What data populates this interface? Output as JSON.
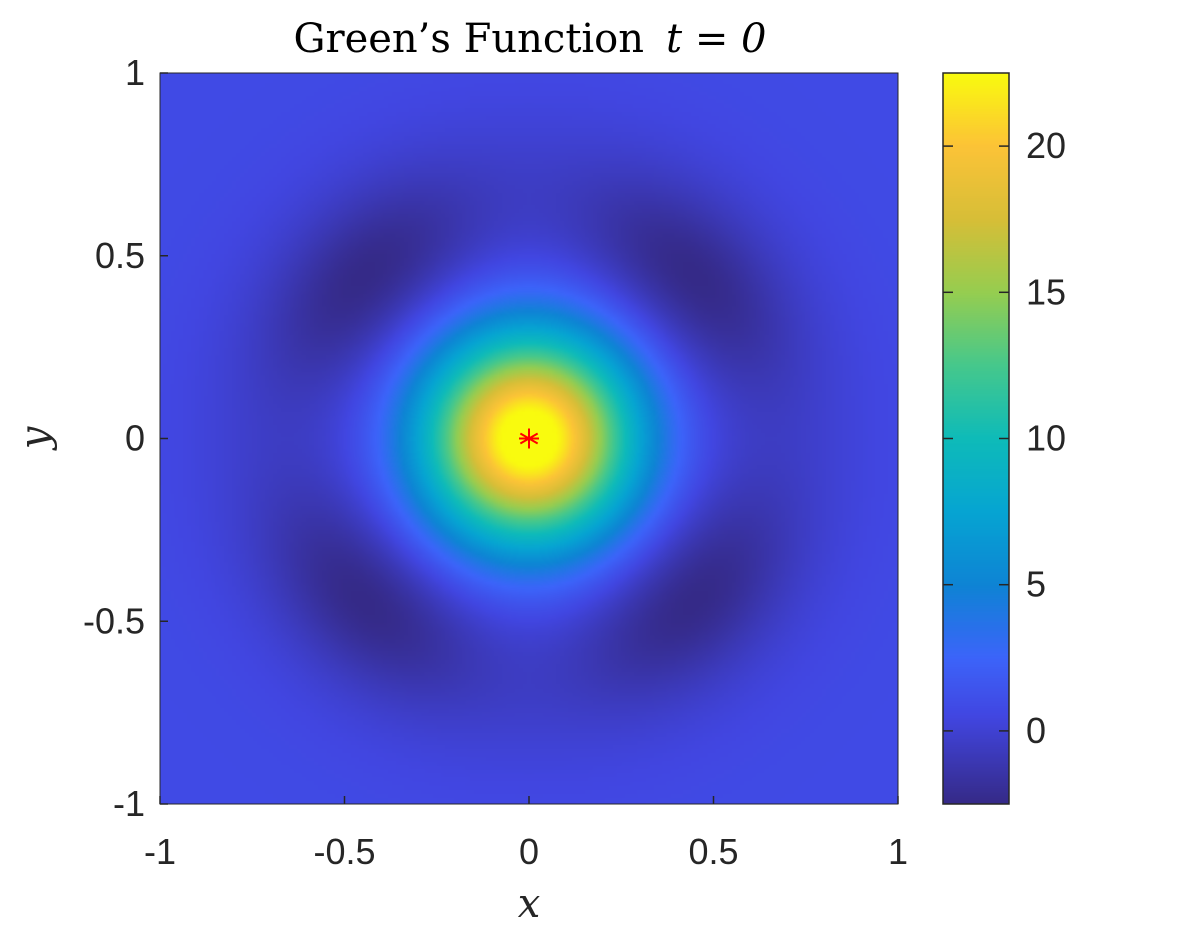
{
  "chart_data": {
    "type": "heatmap",
    "title": "Green’s Function",
    "title_math": "t = 0",
    "xlabel": "x",
    "ylabel": "y",
    "xlim": [
      -1,
      1
    ],
    "ylim": [
      -1,
      1
    ],
    "xticks": [
      {
        "value": -1,
        "label": "-1"
      },
      {
        "value": -0.5,
        "label": "-0.5"
      },
      {
        "value": 0,
        "label": "0"
      },
      {
        "value": 0.5,
        "label": "0.5"
      },
      {
        "value": 1,
        "label": "1"
      }
    ],
    "yticks": [
      {
        "value": -1,
        "label": "-1"
      },
      {
        "value": -0.5,
        "label": "-0.5"
      },
      {
        "value": 0,
        "label": "0"
      },
      {
        "value": 0.5,
        "label": "0.5"
      },
      {
        "value": 1,
        "label": "1"
      }
    ],
    "colorbar": {
      "colormap": "parula",
      "clim": [
        -2.5,
        22.5
      ],
      "ticks": [
        {
          "value": 0,
          "label": "0"
        },
        {
          "value": 5,
          "label": "5"
        },
        {
          "value": 10,
          "label": "10"
        },
        {
          "value": 15,
          "label": "15"
        },
        {
          "value": 20,
          "label": "20"
        }
      ]
    },
    "peak": {
      "x": 0,
      "y": 0,
      "value": 22.5
    },
    "source_marker": {
      "x": 0,
      "y": 0,
      "symbol": "*",
      "color": "#ff0000"
    },
    "grid": false
  }
}
